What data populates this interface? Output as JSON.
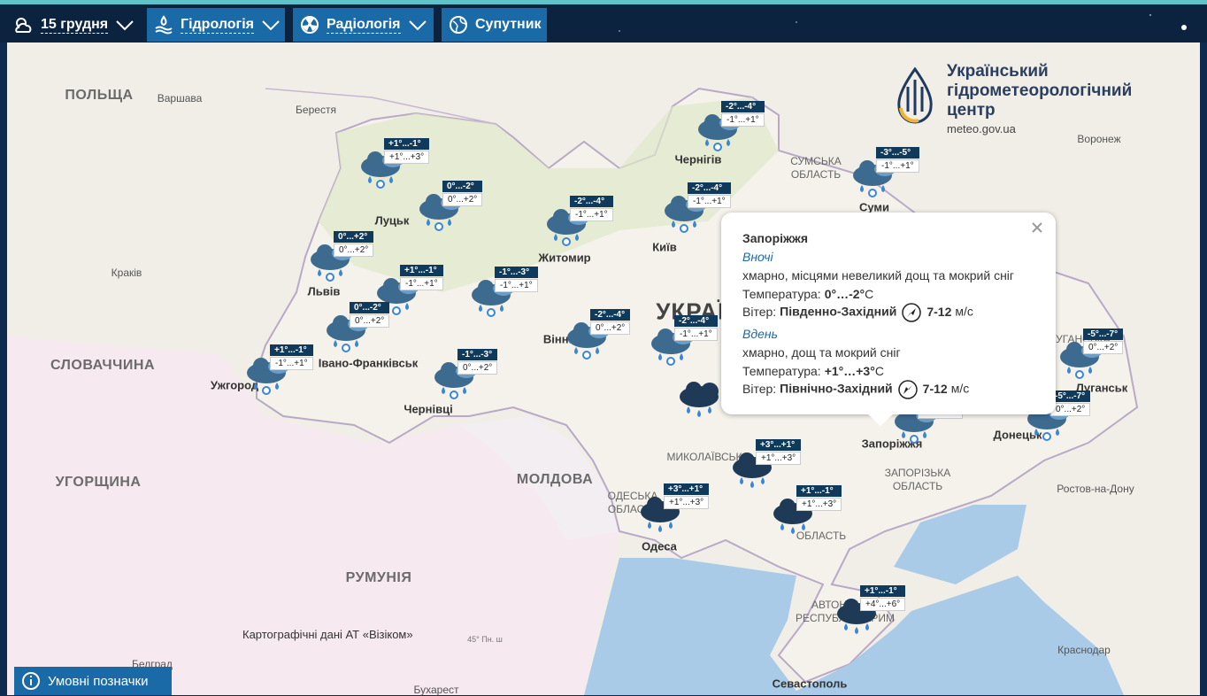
{
  "nav": {
    "date": "15 грудня",
    "items": [
      "Гідрологія",
      "Радіологія",
      "Супутник"
    ]
  },
  "logo": {
    "lines": [
      "Український",
      "гідрометеорологічний",
      "центр"
    ],
    "url": "meteo.gov.ua"
  },
  "map_labels": [
    "ПОЛЬЩА",
    "Варшава",
    "Берестя",
    "Краків",
    "СЛОВАЧЧИНА",
    "УГОРЩИНА",
    "РУМУНІЯ",
    "МОЛДОВА",
    "Бухарест",
    "Белград",
    "Чернігів",
    "СУМСЬКА",
    "ОБЛАСТЬ",
    "Суми",
    "Воронеж",
    "Луцьк",
    "Житомир",
    "Київ",
    "Львів",
    "Івано-Франківськ",
    "Ужгород",
    "Чернівці",
    "Вінниця",
    "УКРАЇНА",
    "Запоріжжя",
    "ЗАПОРІЗЬКА",
    "ОБЛАСТЬ",
    "Донецьк",
    "Луганськ",
    "ЛУГАНСЬКА",
    "Ростов-на-Дону",
    "Краснодар",
    "МИКОЛАЇВСЬКА",
    "ОДЕСЬКА",
    "ОБЛАСТЬ",
    "Одеса",
    "ОБЛАСТЬ",
    "Севастополь",
    "АВТОНОМНА",
    "РЕСПУБЛІКА КРИМ",
    "45° Пн. ш"
  ],
  "forecasts": [
    {
      "night": "+1°...-1°",
      "day": "+1°...+3°"
    },
    {
      "night": "0°...-2°",
      "day": "0°...+2°"
    },
    {
      "night": "0°...+2°",
      "day": "0°...+2°"
    },
    {
      "night": "+1°...-1°",
      "day": "-1°...+1°"
    },
    {
      "night": "-1°...-3°",
      "day": "-1°...+1°"
    },
    {
      "night": "0°...-2°",
      "day": "0°...+2°"
    },
    {
      "night": "+1°...-1°",
      "day": "-1°...+1°"
    },
    {
      "night": "-1°...-3°",
      "day": "0°...+2°"
    },
    {
      "night": "-2°...-4°",
      "day": "-1°...+1°"
    },
    {
      "night": "-2°...-4°",
      "day": "-1°...+1°"
    },
    {
      "night": "-2°...-4°",
      "day": "-1°...+1°"
    },
    {
      "night": "-3°...-5°",
      "day": "-1°...+1°"
    },
    {
      "night": "-2°...-4°",
      "day": "0°...+2°"
    },
    {
      "night": "-2°...-4°",
      "day": "-1°...+1°"
    },
    {
      "night": "0°...-2°",
      "day": "+1°...+3°"
    },
    {
      "night": "-5°...-7°",
      "day": "0°...+2°"
    },
    {
      "night": "-5°...-7°",
      "day": "0°...+2°"
    },
    {
      "night": "+3°...+1°",
      "day": "+1°...+3°"
    },
    {
      "night": "+3°...+1°",
      "day": "+1°...+3°"
    },
    {
      "night": "+1°...-1°",
      "day": "+1°...+3°"
    },
    {
      "night": "+1°...-1°",
      "day": "+4°...+6°"
    }
  ],
  "popup": {
    "city": "Запоріжжя",
    "periods": [
      {
        "name": "Вночі",
        "description": "хмарно, місцями невеликий дощ та мокрий сніг",
        "temp_label": "Температура:",
        "temp": "0°…-2°",
        "temp_unit": "C",
        "wind_label": "Вітер:",
        "wind_dir": "Південно-Західний",
        "wind_speed": "7-12",
        "wind_unit": "м/с"
      },
      {
        "name": "Вдень",
        "description": "хмарно, дощ та мокрий сніг",
        "temp_label": "Температура:",
        "temp": "+1°…+3°",
        "temp_unit": "C",
        "wind_label": "Вітер:",
        "wind_dir": "Північно-Західний",
        "wind_speed": "7-12",
        "wind_unit": "м/с"
      }
    ]
  },
  "credits": "Картографічні дані АТ «Візіком»",
  "legend_button": "Умовні позначки"
}
